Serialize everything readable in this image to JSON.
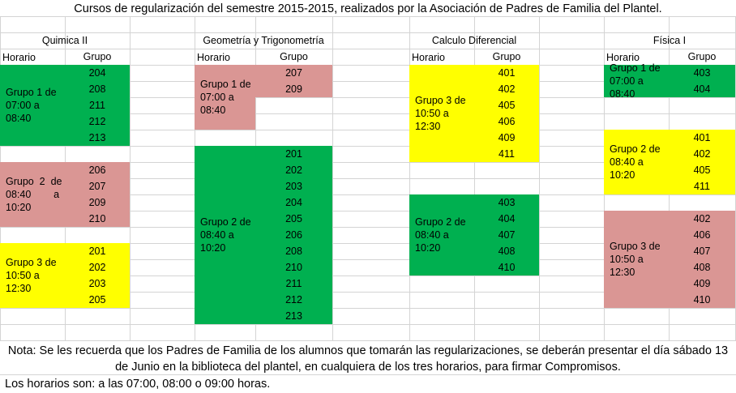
{
  "title": "Cursos de regularización del semestre 2015-2015, realizados por la Asociación de Padres de Familia del Plantel.",
  "column_headers": {
    "schedule": "Horario",
    "group": "Grupo"
  },
  "subjects": [
    {
      "name": "Quimica II",
      "blocks": [
        {
          "color": "#00b050",
          "label": [
            "Grupo 1 de",
            "07:00 a",
            "08:40"
          ],
          "groups": [
            "204",
            "208",
            "211",
            "212",
            "213"
          ]
        },
        {
          "color": "#da9694",
          "label": [
            "Grupo  2  de",
            "08:40        a",
            "10:20"
          ],
          "groups": [
            "206",
            "207",
            "209",
            "210"
          ]
        },
        {
          "color": "#ffff00",
          "label": [
            "Grupo 3 de",
            "10:50 a",
            "12:30"
          ],
          "groups": [
            "201",
            "202",
            "203",
            "205"
          ]
        }
      ]
    },
    {
      "name": "Geometría y Trigonometría",
      "blocks": [
        {
          "color": "#da9694",
          "label": [
            "Grupo 1 de",
            "07:00 a",
            "08:40"
          ],
          "groups": [
            "207",
            "209"
          ]
        },
        {
          "color": "#00b050",
          "label": [
            "Grupo 2 de",
            "08:40 a",
            "10:20"
          ],
          "groups": [
            "201",
            "202",
            "203",
            "204",
            "205",
            "206",
            "208",
            "210",
            "211",
            "212",
            "213"
          ]
        }
      ]
    },
    {
      "name": "Calculo Diferencial",
      "blocks": [
        {
          "color": "#ffff00",
          "label": [
            "Grupo 3 de",
            "10:50 a",
            "12:30"
          ],
          "groups": [
            "401",
            "402",
            "405",
            "406",
            "409",
            "411"
          ]
        },
        {
          "color": "#00b050",
          "label": [
            "Grupo 2 de",
            "08:40 a",
            "10:20"
          ],
          "groups": [
            "403",
            "404",
            "407",
            "408",
            "410"
          ]
        }
      ]
    },
    {
      "name": "Física I",
      "blocks": [
        {
          "color": "#00b050",
          "label": [
            "Grupo 1 de",
            "07:00 a",
            "08:40"
          ],
          "groups": [
            "403",
            "404"
          ]
        },
        {
          "color": "#ffff00",
          "label": [
            "Grupo 2 de",
            "08:40 a",
            "10:20"
          ],
          "groups": [
            "401",
            "402",
            "405",
            "411"
          ]
        },
        {
          "color": "#da9694",
          "label": [
            "Grupo 3 de",
            "10:50 a",
            "12:30"
          ],
          "groups": [
            "402",
            "406",
            "407",
            "408",
            "409",
            "410"
          ]
        }
      ]
    }
  ],
  "note": "Nota: Se les recuerda que los Padres de Familia de los alumnos que tomarán las regularizaciones, se deberán presentar el día sábado 13 de Junio en la biblioteca del plantel, en cualquiera de los tres horarios, para firmar Compromisos.",
  "footer": "Los horarios son: a las 07:00, 08:00 o 09:00 horas."
}
